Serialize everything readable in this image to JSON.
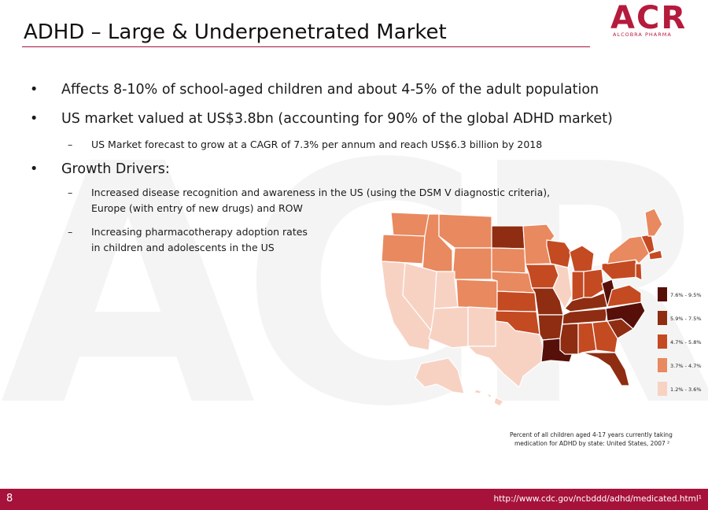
{
  "header": {
    "title": "ADHD – Large & Underpenetrated Market",
    "logo": "ACR",
    "logo_subtitle": "ALCOBRA PHARMA"
  },
  "bullets": [
    {
      "text": "Affects 8-10% of school-aged children and about 4-5% of the adult population",
      "sub": []
    },
    {
      "text": "US market valued at US$3.8bn (accounting for 90% of the global ADHD market)",
      "sub": [
        "US Market forecast to grow at a CAGR of 7.3% per annum and reach US$6.3 billion by 2018"
      ]
    },
    {
      "text": "Growth Drivers:",
      "sub": [
        [
          "Increased disease recognition and awareness in the US (using the DSM V diagnostic criteria),",
          "Europe (with entry of new drugs) and ROW"
        ],
        [
          "Increasing pharmacotherapy adoption rates",
          "in children and adolescents in the US"
        ]
      ]
    }
  ],
  "map": {
    "legend": [
      {
        "label": "7.6% - 9.5%",
        "color": "#561009"
      },
      {
        "label": "5.9% - 7.5%",
        "color": "#8e2d12"
      },
      {
        "label": "4.7% - 5.8%",
        "color": "#c44a22"
      },
      {
        "label": "3.7% - 4.7%",
        "color": "#e9895f"
      },
      {
        "label": "1.2% - 3.6%",
        "color": "#f7d2c3"
      }
    ],
    "caption": [
      "Percent of all children aged 4-17 years currently taking",
      "medication for ADHD by state: United States, 2007 ²"
    ]
  },
  "footer": {
    "page": "8",
    "url": "http://www.cdc.gov/ncbddd/adhd/medicated.html¹"
  }
}
